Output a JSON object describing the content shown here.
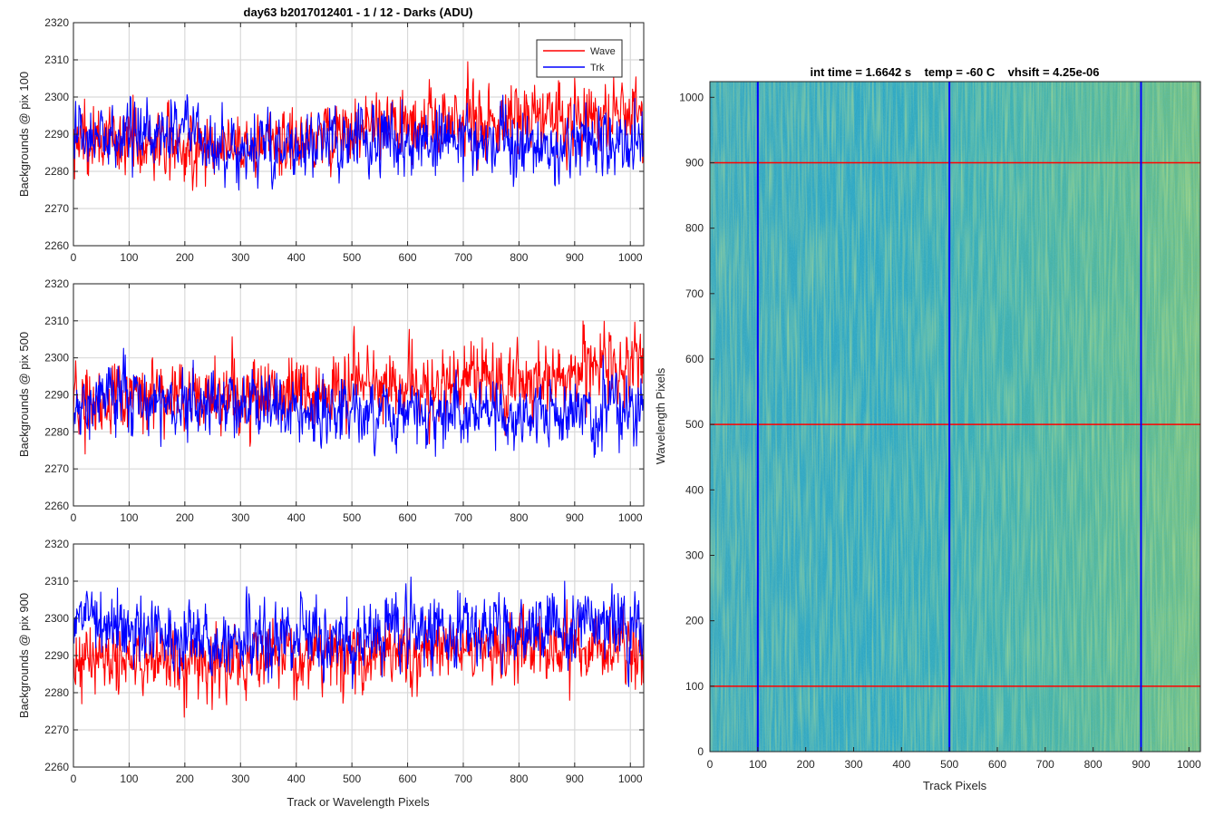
{
  "figure_title": "day63 b2017012401 - 1 / 12 - Darks (ADU)",
  "colors": {
    "wave": "#ff0000",
    "trk": "#0000ff",
    "axis": "#262626",
    "grid": "#d9d9d9"
  },
  "chart_data": [
    {
      "type": "line",
      "title": "day63 b2017012401 - 1 / 12 - Darks (ADU)",
      "ylabel": "Backgrounds @ pix 100",
      "xlabel": "",
      "xlim": [
        0,
        1024
      ],
      "ylim": [
        2260,
        2320
      ],
      "xticks": [
        0,
        100,
        200,
        300,
        400,
        500,
        600,
        700,
        800,
        900,
        1000
      ],
      "yticks": [
        2260,
        2270,
        2280,
        2290,
        2300,
        2310,
        2320
      ],
      "grid": true,
      "legend": {
        "location": "top-right",
        "entries": [
          "Wave",
          "Trk"
        ]
      },
      "series": [
        {
          "name": "Wave",
          "color": "#ff0000",
          "x": [
            0,
            100,
            200,
            300,
            400,
            500,
            600,
            700,
            800,
            900,
            1024
          ],
          "mean": [
            2288,
            2288,
            2287,
            2287,
            2289,
            2291,
            2292,
            2294,
            2294,
            2295,
            2296
          ],
          "sd": 5.2,
          "min": 2268,
          "max": 2317
        },
        {
          "name": "Trk",
          "color": "#0000ff",
          "x": [
            0,
            100,
            200,
            300,
            400,
            500,
            600,
            700,
            800,
            900,
            1024
          ],
          "mean": [
            2289,
            2289,
            2292,
            2286,
            2286,
            2288,
            2288,
            2289,
            2287,
            2288,
            2287
          ],
          "sd": 4.8,
          "min": 2264,
          "max": 2314
        }
      ]
    },
    {
      "type": "line",
      "title": "",
      "ylabel": "Backgrounds @ pix 500",
      "xlabel": "",
      "xlim": [
        0,
        1024
      ],
      "ylim": [
        2260,
        2320
      ],
      "xticks": [
        0,
        100,
        200,
        300,
        400,
        500,
        600,
        700,
        800,
        900,
        1000
      ],
      "yticks": [
        2260,
        2270,
        2280,
        2290,
        2300,
        2310,
        2320
      ],
      "grid": true,
      "series": [
        {
          "name": "Wave",
          "color": "#ff0000",
          "x": [
            0,
            100,
            200,
            300,
            400,
            500,
            600,
            700,
            800,
            900,
            1024
          ],
          "mean": [
            2287,
            2289,
            2289,
            2290,
            2290,
            2292,
            2293,
            2294,
            2295,
            2296,
            2298
          ],
          "sd": 5.5,
          "min": 2269,
          "max": 2315
        },
        {
          "name": "Trk",
          "color": "#0000ff",
          "x": [
            0,
            100,
            200,
            300,
            400,
            500,
            600,
            700,
            800,
            900,
            1024
          ],
          "mean": [
            2285,
            2290,
            2288,
            2287,
            2286,
            2287,
            2286,
            2287,
            2285,
            2285,
            2287
          ],
          "sd": 5.0,
          "min": 2266,
          "max": 2305
        }
      ]
    },
    {
      "type": "line",
      "title": "",
      "ylabel": "Backgrounds @ pix 900",
      "xlabel": "Track or Wavelength Pixels",
      "xlim": [
        0,
        1024
      ],
      "ylim": [
        2260,
        2320
      ],
      "xticks": [
        0,
        100,
        200,
        300,
        400,
        500,
        600,
        700,
        800,
        900,
        1000
      ],
      "yticks": [
        2260,
        2270,
        2280,
        2290,
        2300,
        2310,
        2320
      ],
      "grid": true,
      "series": [
        {
          "name": "Wave",
          "color": "#ff0000",
          "x": [
            0,
            100,
            200,
            300,
            400,
            500,
            600,
            700,
            800,
            900,
            1024
          ],
          "mean": [
            2288,
            2289,
            2287,
            2288,
            2290,
            2291,
            2292,
            2291,
            2292,
            2293,
            2292
          ],
          "sd": 5.0,
          "min": 2266,
          "max": 2310
        },
        {
          "name": "Trk",
          "color": "#0000ff",
          "x": [
            0,
            100,
            200,
            300,
            400,
            500,
            600,
            700,
            800,
            900,
            1024
          ],
          "mean": [
            2300,
            2296,
            2294,
            2294,
            2295,
            2295,
            2296,
            2298,
            2296,
            2298,
            2297
          ],
          "sd": 5.5,
          "min": 2275,
          "max": 2313
        }
      ]
    },
    {
      "type": "heatmap",
      "title": "int time = 1.6642 s    temp = -60 C    vhsift = 4.25e-06",
      "xlabel": "Track Pixels",
      "ylabel": "Wavelength Pixels",
      "xlim": [
        0,
        1024
      ],
      "ylim": [
        0,
        1024
      ],
      "xticks": [
        0,
        100,
        200,
        300,
        400,
        500,
        600,
        700,
        800,
        900,
        1000
      ],
      "yticks": [
        0,
        100,
        200,
        300,
        400,
        500,
        600,
        700,
        800,
        900,
        1000
      ],
      "colormap": "parula",
      "vertical_lines": {
        "x": [
          100,
          500,
          900
        ],
        "color": "#0000ff"
      },
      "horizontal_lines": {
        "y": [
          100,
          500,
          900
        ],
        "color": "#ff0000"
      }
    }
  ]
}
